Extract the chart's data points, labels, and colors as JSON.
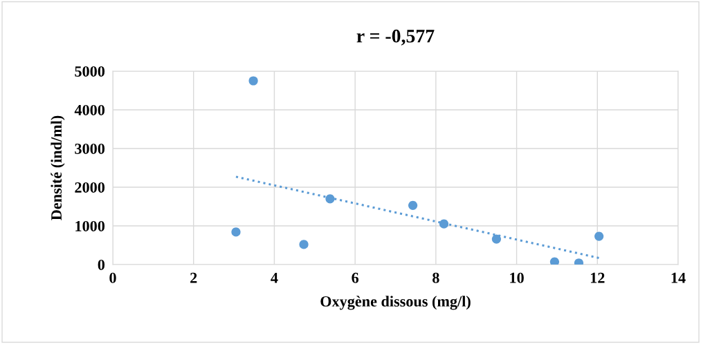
{
  "chart_data": {
    "type": "scatter",
    "title": "r = -0,577",
    "xlabel": "Oxygène dissous (mg/l)",
    "ylabel": "Densité (ind/ml)",
    "series": [
      {
        "color": "#5b9bd5",
        "x": [
          3.48,
          3.05,
          4.73,
          5.38,
          7.43,
          8.2,
          9.5,
          10.94,
          11.54,
          12.04
        ],
        "values": [
          4750,
          840,
          520,
          1700,
          1530,
          1050,
          660,
          70,
          40,
          730
        ],
        "marker": "circle"
      },
      {
        "type": "line",
        "color": "#5b9bd5",
        "x": [
          3.05,
          12.04
        ],
        "values": [
          2270,
          170
        ],
        "line_style": "dotted",
        "marker": "none"
      }
    ],
    "xlim": [
      0,
      14
    ],
    "xticks": [
      0,
      2,
      4,
      6,
      8,
      10,
      12,
      14
    ],
    "ylim": [
      0,
      5000
    ],
    "yticks": [
      0,
      1000,
      2000,
      3000,
      4000,
      5000
    ],
    "grid": true,
    "legend": false
  }
}
